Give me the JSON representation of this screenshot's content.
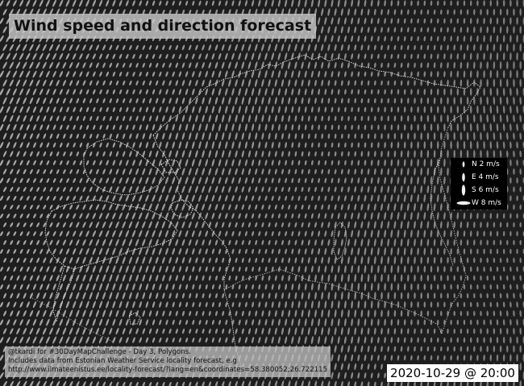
{
  "title": "Wind speed and direction forecast",
  "datetime": "2020-10-29 @ 20:00",
  "legend": [
    {
      "direction": "N",
      "speed": 2,
      "unit": "m/s",
      "label": "N 2 m/s"
    },
    {
      "direction": "E",
      "speed": 4,
      "unit": "m/s",
      "label": "E 4 m/s"
    },
    {
      "direction": "S",
      "speed": 6,
      "unit": "m/s",
      "label": "S 6 m/s"
    },
    {
      "direction": "W",
      "speed": 8,
      "unit": "m/s",
      "label": "W 8 m/s"
    }
  ],
  "credits": {
    "line1": "@tkardi for #30DayMapChallenge - Day 3, Polygons.",
    "line2": "Includes data from Estonian Weather Service locality forecast, e.g",
    "line3": "http://www.ilmateenistus.ee/locality-forecast/?lang=en&coordinates=58.380052;26.722115"
  },
  "colors": {
    "background": "#1e1e1e",
    "wind_marks": "#c8c8c8",
    "coastline": "#e6e6e6",
    "border": "#cfcfcf"
  }
}
